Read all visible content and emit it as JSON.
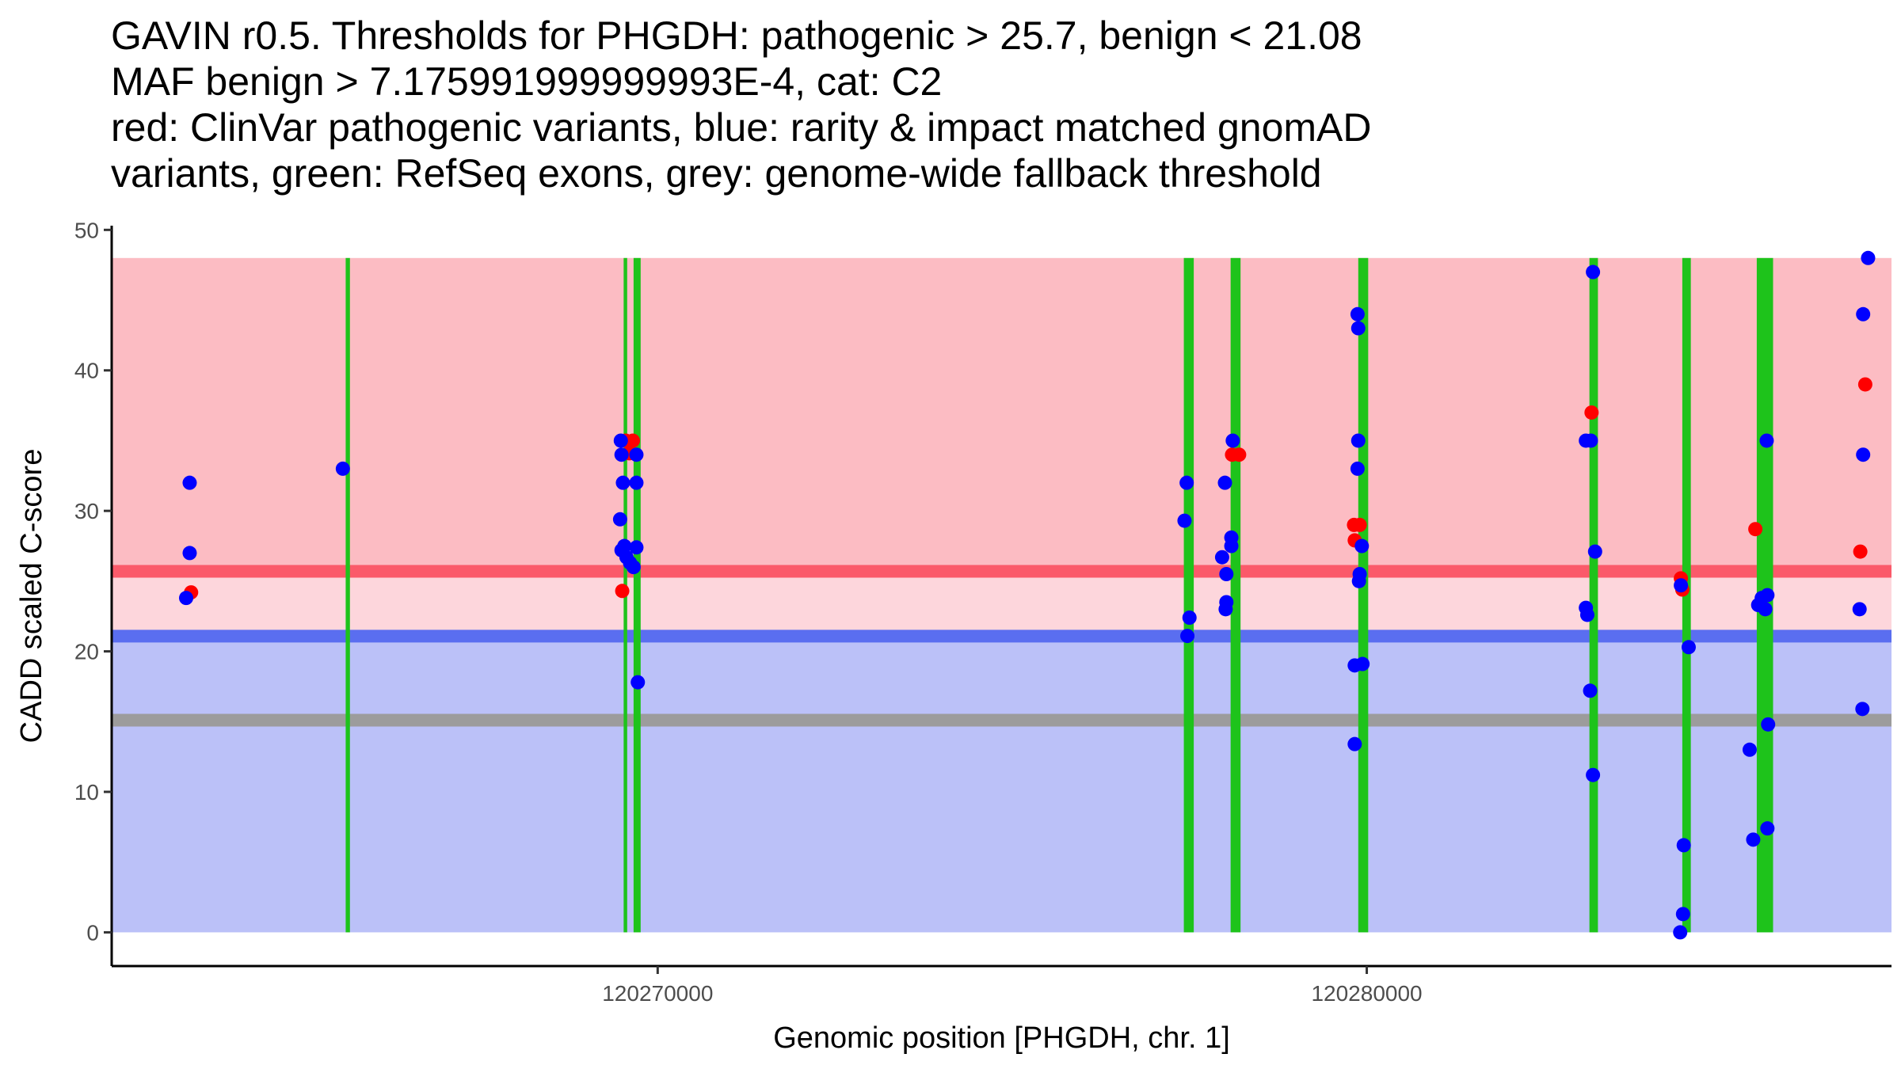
{
  "title_lines": [
    "GAVIN r0.5. Thresholds for PHGDH: pathogenic > 25.7, benign < 21.08",
    "MAF benign > 7.175991999999993E-4, cat: C2",
    "red: ClinVar pathogenic variants, blue: rarity & impact matched gnomAD",
    "variants, green: RefSeq exons, grey: genome-wide fallback threshold"
  ],
  "chart_data": {
    "type": "scatter",
    "title": "GAVIN r0.5. Thresholds for PHGDH: pathogenic > 25.7, benign < 21.08 MAF benign > 7.175991999999993E-4, cat: C2 red: ClinVar pathogenic variants, blue: rarity & impact matched gnomAD variants, green: RefSeq exons, grey: genome-wide fallback threshold",
    "xlabel": "Genomic position [PHGDH, chr. 1]",
    "ylabel": "CADD scaled C-score",
    "xlim": [
      120262300,
      120287400
    ],
    "ylim": [
      -2.4,
      50.3
    ],
    "x_ticks": [
      120270000,
      120280000
    ],
    "x_tick_labels": [
      "120270000",
      "120280000"
    ],
    "y_ticks": [
      0,
      10,
      20,
      30,
      40,
      50
    ],
    "y_tick_labels": [
      "0",
      "10",
      "20",
      "30",
      "40",
      "50"
    ],
    "regions": [
      {
        "name": "pathogenic region",
        "y_from": 25.7,
        "y_to": 48,
        "color": "#fcbcc3"
      },
      {
        "name": "uncertain region",
        "y_from": 21.08,
        "y_to": 25.7,
        "color": "#fdd6dc"
      },
      {
        "name": "benign region",
        "y_from": 0,
        "y_to": 21.08,
        "color": "#bbc1f8"
      }
    ],
    "thresholds": [
      {
        "name": "pathogenic threshold",
        "y": 25.7,
        "color": "#fb5a6a"
      },
      {
        "name": "benign threshold",
        "y": 21.08,
        "color": "#5a6ef0"
      },
      {
        "name": "genome-wide fallback threshold",
        "y": 15.1,
        "color": "#9c9c9c"
      }
    ],
    "exons": [
      {
        "start": 120265600,
        "end": 120265660
      },
      {
        "start": 120269520,
        "end": 120269570
      },
      {
        "start": 120269660,
        "end": 120269760
      },
      {
        "start": 120277420,
        "end": 120277560
      },
      {
        "start": 120278080,
        "end": 120278220
      },
      {
        "start": 120279880,
        "end": 120280020
      },
      {
        "start": 120283140,
        "end": 120283260
      },
      {
        "start": 120284450,
        "end": 120284570
      },
      {
        "start": 120285500,
        "end": 120285730
      }
    ],
    "series": [
      {
        "name": "ClinVar pathogenic variants",
        "color": "#ff0000",
        "points": [
          [
            120263420,
            24.2
          ],
          [
            120269500,
            24.3
          ],
          [
            120269550,
            35
          ],
          [
            120269650,
            35
          ],
          [
            120269600,
            34.1
          ],
          [
            120278100,
            34
          ],
          [
            120278200,
            34
          ],
          [
            120279820,
            29
          ],
          [
            120279900,
            29
          ],
          [
            120279830,
            27.9
          ],
          [
            120283170,
            37
          ],
          [
            120284430,
            25.2
          ],
          [
            120284450,
            24.4
          ],
          [
            120285480,
            28.7
          ],
          [
            120286960,
            27.1
          ],
          [
            120287030,
            39
          ]
        ]
      },
      {
        "name": "gnomAD matched variants",
        "color": "#0000ff",
        "points": [
          [
            120263350,
            23.8
          ],
          [
            120263400,
            32
          ],
          [
            120263400,
            27
          ],
          [
            120265560,
            33
          ],
          [
            120269480,
            35
          ],
          [
            120269490,
            34
          ],
          [
            120269510,
            32
          ],
          [
            120269470,
            29.4
          ],
          [
            120269490,
            27.2
          ],
          [
            120269530,
            27.5
          ],
          [
            120269560,
            26.7
          ],
          [
            120269610,
            26.3
          ],
          [
            120269660,
            26
          ],
          [
            120269700,
            34
          ],
          [
            120269700,
            32
          ],
          [
            120269700,
            27.4
          ],
          [
            120269720,
            17.8
          ],
          [
            120277430,
            29.3
          ],
          [
            120277460,
            32
          ],
          [
            120277500,
            22.4
          ],
          [
            120277470,
            21.1
          ],
          [
            120277960,
            26.7
          ],
          [
            120278000,
            32
          ],
          [
            120278020,
            25.5
          ],
          [
            120278020,
            23.5
          ],
          [
            120278010,
            23
          ],
          [
            120278090,
            28.1
          ],
          [
            120278090,
            27.5
          ],
          [
            120278110,
            35
          ],
          [
            120279870,
            44
          ],
          [
            120279880,
            43
          ],
          [
            120279880,
            35
          ],
          [
            120279870,
            33
          ],
          [
            120279930,
            27.5
          ],
          [
            120279900,
            25.5
          ],
          [
            120279890,
            25
          ],
          [
            120279830,
            19
          ],
          [
            120279940,
            19.1
          ],
          [
            120279830,
            13.4
          ],
          [
            120283090,
            35
          ],
          [
            120283160,
            35
          ],
          [
            120283090,
            23.1
          ],
          [
            120283110,
            22.6
          ],
          [
            120283190,
            47
          ],
          [
            120283220,
            27.1
          ],
          [
            120283150,
            17.2
          ],
          [
            120283190,
            11.2
          ],
          [
            120284430,
            24.7
          ],
          [
            120284540,
            20.3
          ],
          [
            120284470,
            6.2
          ],
          [
            120284460,
            1.3
          ],
          [
            120284420,
            0
          ],
          [
            120285400,
            13
          ],
          [
            120285520,
            23.3
          ],
          [
            120285570,
            23.8
          ],
          [
            120285650,
            24
          ],
          [
            120285620,
            23
          ],
          [
            120285640,
            35
          ],
          [
            120285660,
            14.8
          ],
          [
            120285450,
            6.6
          ],
          [
            120285650,
            7.4
          ],
          [
            120286950,
            23
          ],
          [
            120286990,
            15.9
          ],
          [
            120287000,
            44
          ],
          [
            120287000,
            34
          ],
          [
            120287070,
            48
          ]
        ]
      }
    ]
  }
}
